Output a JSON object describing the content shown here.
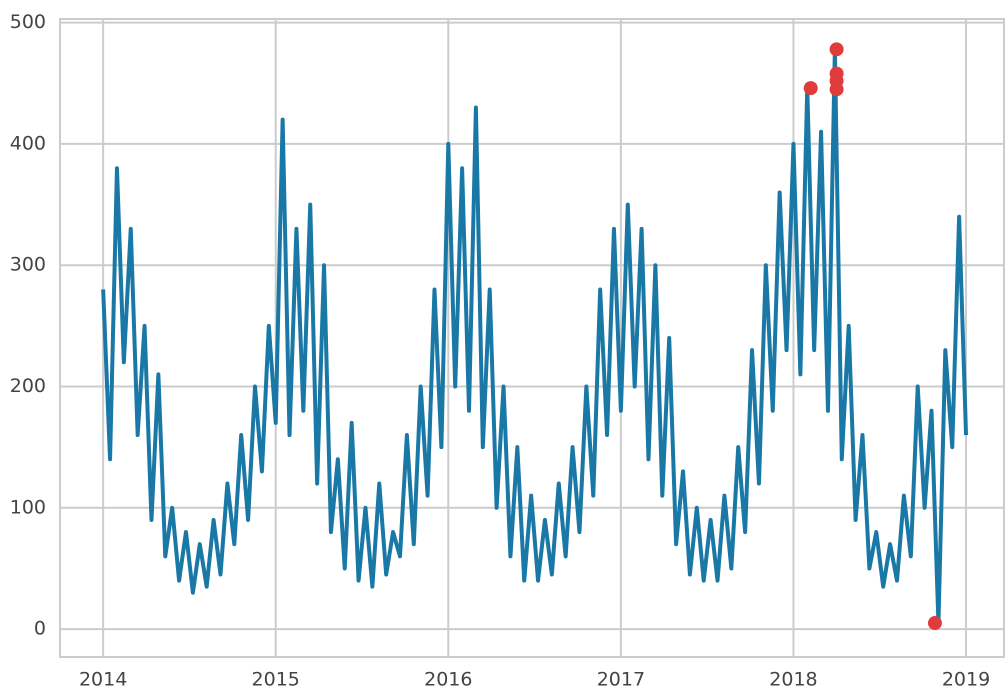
{
  "chart_data": {
    "type": "line",
    "xlim": [
      2013.75,
      2019.22
    ],
    "ylim": [
      -23,
      503
    ],
    "xticks": [
      2014,
      2015,
      2016,
      2017,
      2018,
      2019
    ],
    "yticks": [
      0,
      100,
      200,
      300,
      400,
      500
    ],
    "grid": true,
    "series": [
      {
        "color": "#1a78a6",
        "x": [
          2014,
          2014.04,
          2014.08,
          2014.12,
          2014.16,
          2014.2,
          2014.24,
          2014.28,
          2014.32,
          2014.36,
          2014.4,
          2014.44,
          2014.48,
          2014.52,
          2014.56,
          2014.6,
          2014.64,
          2014.68,
          2014.72,
          2014.76,
          2014.8,
          2014.84,
          2014.88,
          2014.92,
          2014.96,
          2015,
          2015.04,
          2015.08,
          2015.12,
          2015.16,
          2015.2,
          2015.24,
          2015.28,
          2015.32,
          2015.36,
          2015.4,
          2015.44,
          2015.48,
          2015.52,
          2015.56,
          2015.6,
          2015.64,
          2015.68,
          2015.72,
          2015.76,
          2015.8,
          2015.84,
          2015.88,
          2015.92,
          2015.96,
          2016,
          2016.04,
          2016.08,
          2016.12,
          2016.16,
          2016.2,
          2016.24,
          2016.28,
          2016.32,
          2016.36,
          2016.4,
          2016.44,
          2016.48,
          2016.52,
          2016.56,
          2016.6,
          2016.64,
          2016.68,
          2016.72,
          2016.76,
          2016.8,
          2016.84,
          2016.88,
          2016.92,
          2016.96,
          2017,
          2017.04,
          2017.08,
          2017.12,
          2017.16,
          2017.2,
          2017.24,
          2017.28,
          2017.32,
          2017.36,
          2017.4,
          2017.44,
          2017.48,
          2017.52,
          2017.56,
          2017.6,
          2017.64,
          2017.68,
          2017.72,
          2017.76,
          2017.8,
          2017.84,
          2017.88,
          2017.92,
          2017.96,
          2018,
          2018.04,
          2018.08,
          2018.12,
          2018.16,
          2018.2,
          2018.24,
          2018.28,
          2018.32,
          2018.36,
          2018.4,
          2018.44,
          2018.48,
          2018.52,
          2018.56,
          2018.6,
          2018.64,
          2018.68,
          2018.72,
          2018.76,
          2018.8,
          2018.84,
          2018.88,
          2018.92,
          2018.96,
          2019
        ],
        "values": [
          280,
          140,
          380,
          220,
          330,
          160,
          250,
          90,
          210,
          60,
          100,
          40,
          80,
          30,
          70,
          35,
          90,
          45,
          120,
          70,
          160,
          90,
          200,
          130,
          250,
          170,
          420,
          160,
          330,
          180,
          350,
          120,
          300,
          80,
          140,
          50,
          170,
          40,
          100,
          35,
          120,
          45,
          80,
          60,
          160,
          70,
          200,
          110,
          280,
          150,
          400,
          200,
          380,
          180,
          430,
          150,
          280,
          100,
          200,
          60,
          150,
          40,
          110,
          40,
          90,
          45,
          120,
          60,
          150,
          80,
          200,
          110,
          280,
          160,
          330,
          180,
          350,
          200,
          330,
          140,
          300,
          110,
          240,
          70,
          130,
          45,
          100,
          40,
          90,
          40,
          110,
          50,
          150,
          80,
          230,
          120,
          300,
          180,
          360,
          230,
          400,
          210,
          446,
          230,
          410,
          180,
          478,
          140,
          250,
          90,
          160,
          50,
          80,
          35,
          70,
          40,
          110,
          60,
          200,
          100,
          180,
          5,
          230,
          150,
          340,
          160
        ]
      }
    ],
    "outliers": {
      "color": "#e03c3c",
      "x": [
        2018.1,
        2018.25,
        2018.25,
        2018.25,
        2018.25,
        2018.82
      ],
      "values": [
        446,
        478,
        458,
        452,
        445,
        5
      ]
    }
  }
}
